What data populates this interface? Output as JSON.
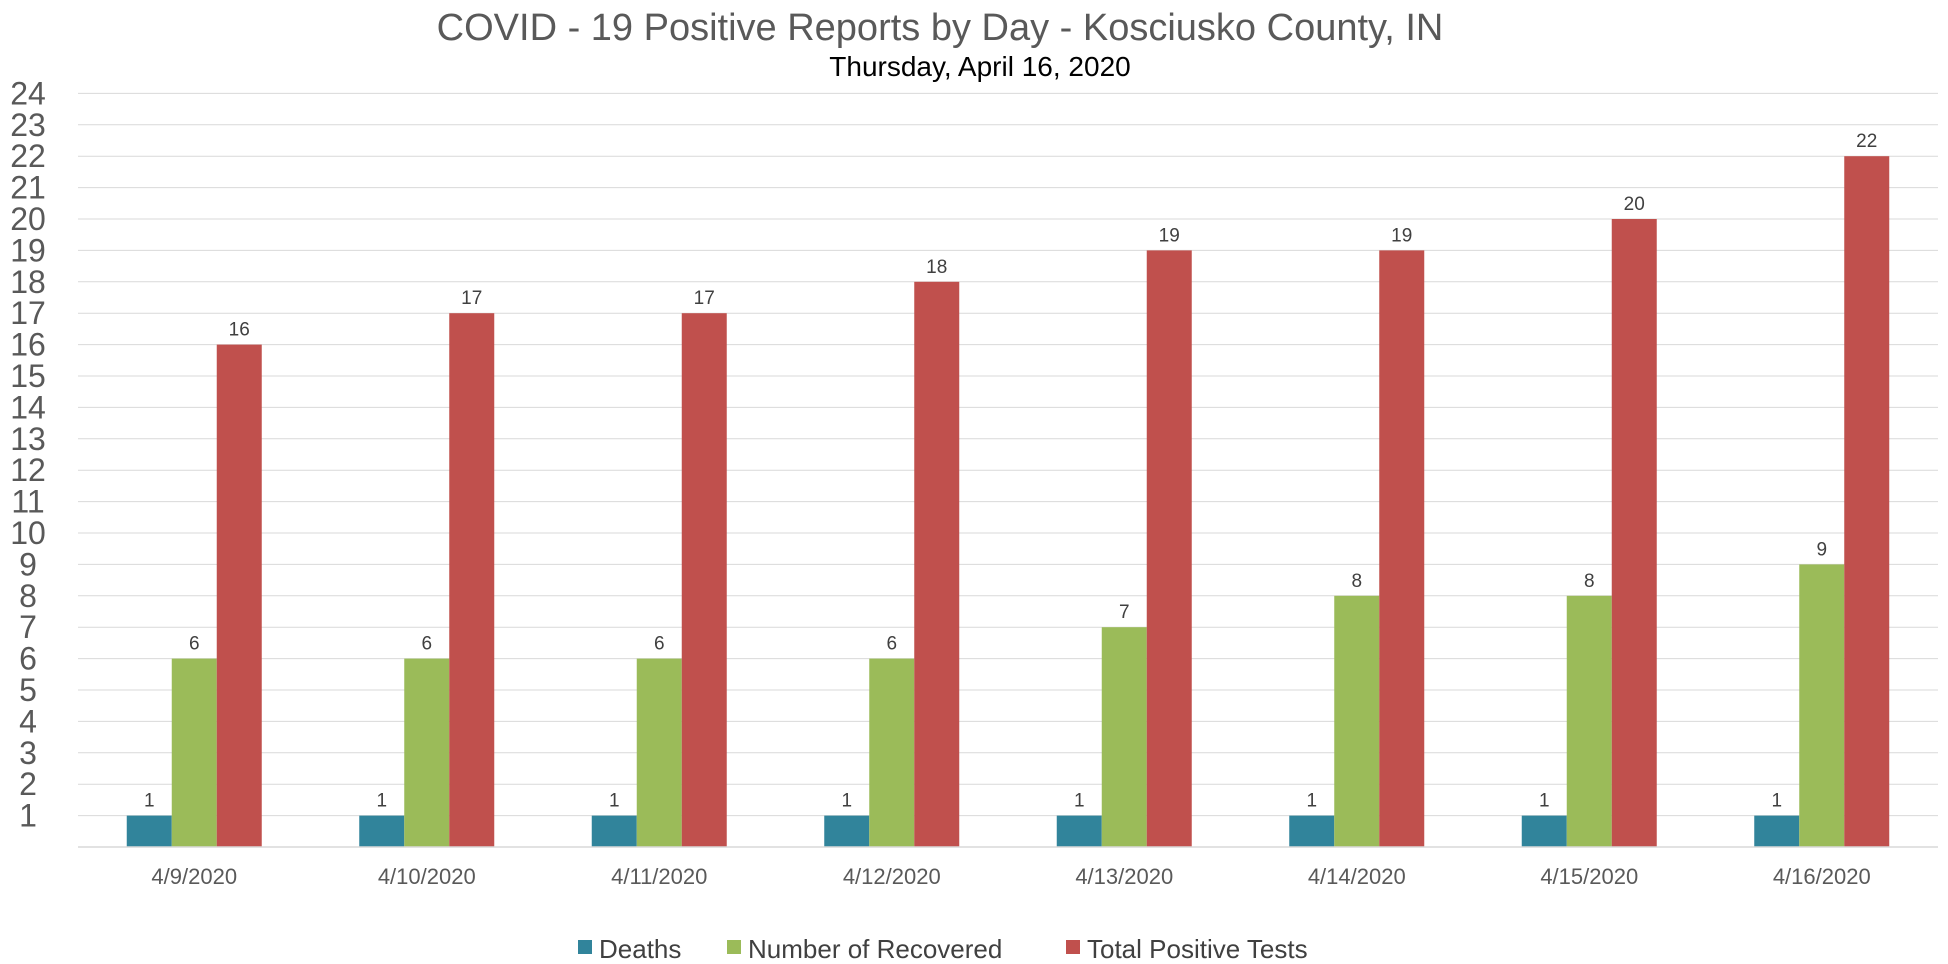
{
  "chart_data": {
    "type": "bar",
    "title": "COVID - 19 Positive Reports by Day - Kosciusko County, IN",
    "subtitle": "Thursday, April 16, 2020",
    "categories": [
      "4/9/2020",
      "4/10/2020",
      "4/11/2020",
      "4/12/2020",
      "4/13/2020",
      "4/14/2020",
      "4/15/2020",
      "4/16/2020"
    ],
    "series": [
      {
        "name": "Deaths",
        "color": "#31849b",
        "values": [
          1,
          1,
          1,
          1,
          1,
          1,
          1,
          1
        ]
      },
      {
        "name": "Number of Recovered",
        "color": "#9bbb59",
        "values": [
          6,
          6,
          6,
          6,
          7,
          8,
          8,
          9
        ]
      },
      {
        "name": "Total Positive Tests",
        "color": "#c0504d",
        "values": [
          16,
          17,
          17,
          18,
          19,
          19,
          20,
          22
        ]
      }
    ],
    "ylim": [
      0,
      24
    ],
    "yticks": [
      1,
      2,
      3,
      4,
      5,
      6,
      7,
      8,
      9,
      10,
      11,
      12,
      13,
      14,
      15,
      16,
      17,
      18,
      19,
      20,
      21,
      22,
      23,
      24
    ],
    "grid": true,
    "legend": "bottom",
    "data_labels": true
  }
}
